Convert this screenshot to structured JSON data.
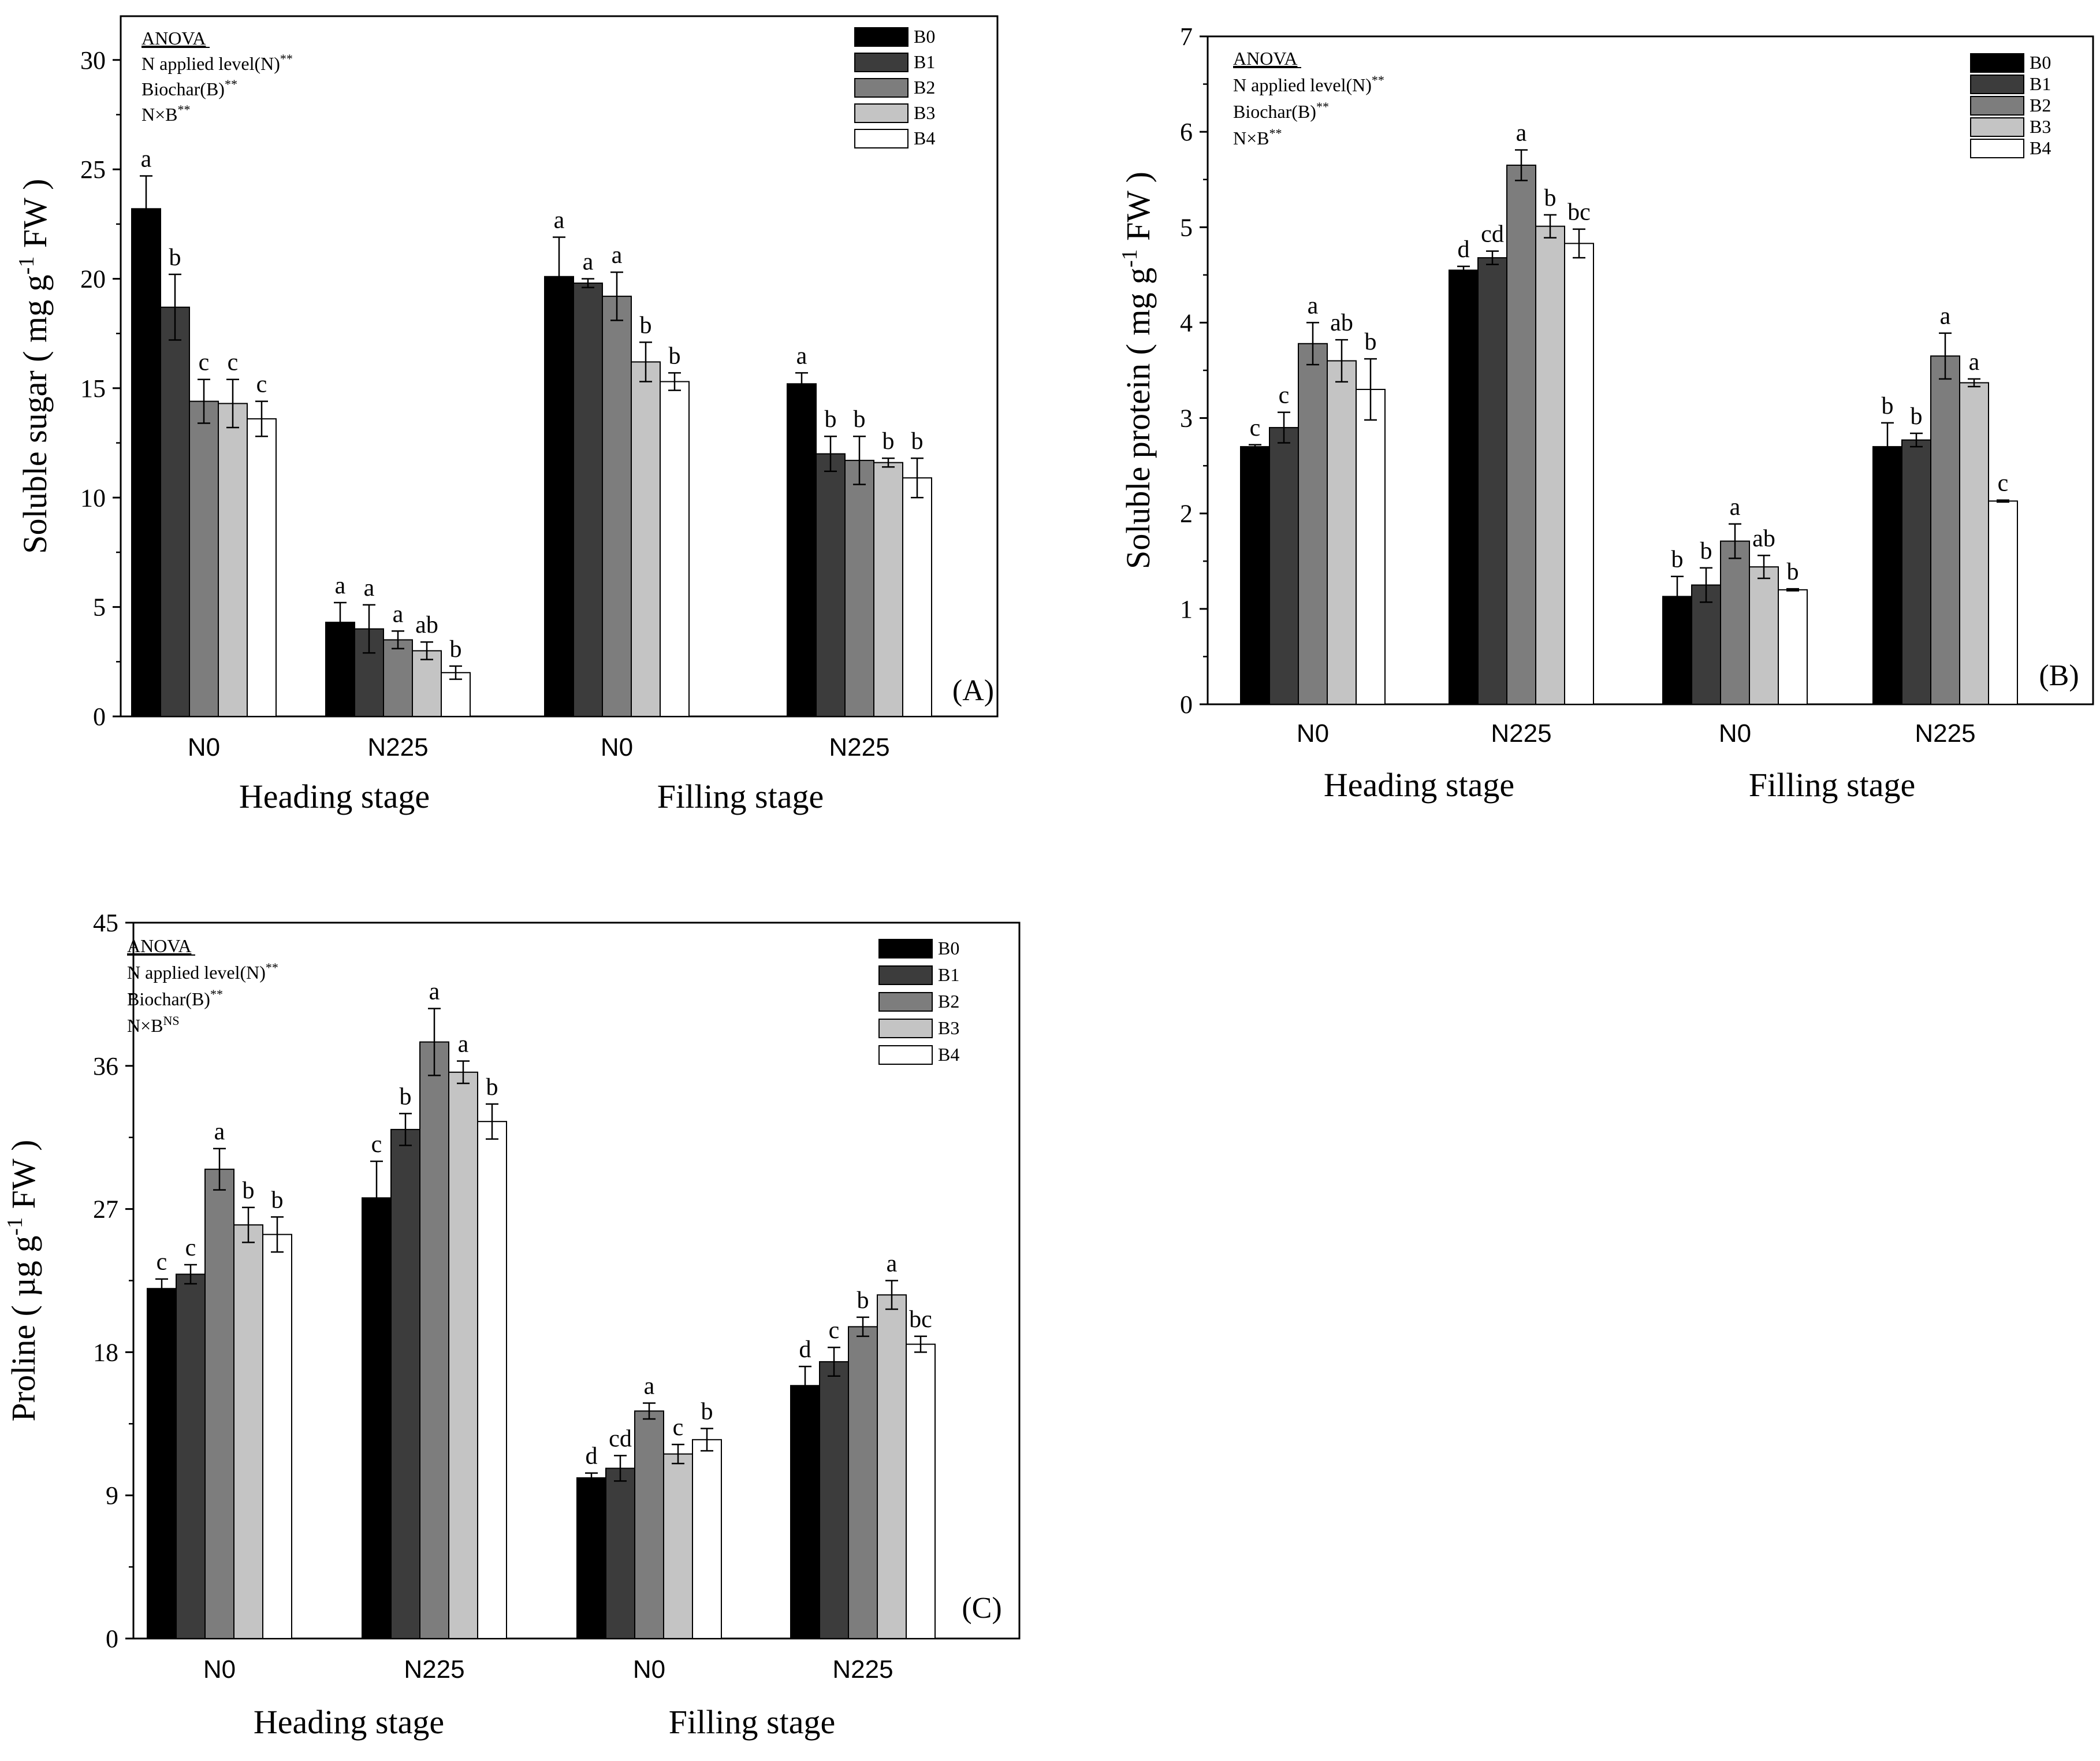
{
  "figure": {
    "legend_labels": [
      "B0",
      "B1",
      "B2",
      "B3",
      "B4"
    ],
    "bar_colors": [
      "#000000",
      "#3c3c3c",
      "#7d7d7d",
      "#c4c4c4",
      "#ffffff"
    ],
    "group_labels": [
      "N0",
      "N225",
      "N0",
      "N225"
    ],
    "stage_labels": [
      "Heading stage",
      "Filling stage"
    ],
    "anova_title": "ANOVA"
  },
  "chart_data": [
    {
      "type": "bar",
      "panel_label": "(A)",
      "ylabel": "Soluble sugar ( mg g-1 FW )",
      "ylabel_parts": {
        "pre": "Soluble sugar ( mg g",
        "sup": "-1",
        "post": " FW )"
      },
      "ylim": [
        0,
        32
      ],
      "yticks": [
        0,
        5,
        10,
        15,
        20,
        25,
        30
      ],
      "categories": [
        "N0",
        "N225",
        "N0",
        "N225"
      ],
      "stages": [
        "Heading stage",
        "Filling stage"
      ],
      "anova": [
        {
          "text": "N applied level(N)",
          "sup": "**"
        },
        {
          "text": "Biochar(B)",
          "sup": "**"
        },
        {
          "text": "N×B",
          "sup": "**"
        }
      ],
      "series": [
        {
          "name": "B0",
          "values": [
            23.2,
            4.3,
            20.1,
            15.2
          ],
          "errors": [
            1.5,
            0.9,
            1.8,
            0.5
          ],
          "letters": [
            "a",
            "a",
            "a",
            "a"
          ]
        },
        {
          "name": "B1",
          "values": [
            18.7,
            4.0,
            19.8,
            12.0
          ],
          "errors": [
            1.5,
            1.1,
            0.2,
            0.8
          ],
          "letters": [
            "b",
            "a",
            "a",
            "b"
          ]
        },
        {
          "name": "B2",
          "values": [
            14.4,
            3.5,
            19.2,
            11.7
          ],
          "errors": [
            1.0,
            0.4,
            1.1,
            1.1
          ],
          "letters": [
            "c",
            "a",
            "a",
            "b"
          ]
        },
        {
          "name": "B3",
          "values": [
            14.3,
            3.0,
            16.2,
            11.6
          ],
          "errors": [
            1.1,
            0.4,
            0.9,
            0.2
          ],
          "letters": [
            "c",
            "ab",
            "b",
            "b"
          ]
        },
        {
          "name": "B4",
          "values": [
            13.6,
            2.0,
            15.3,
            10.9
          ],
          "errors": [
            0.8,
            0.3,
            0.4,
            0.9
          ],
          "letters": [
            "c",
            "b",
            "b",
            "b"
          ]
        }
      ]
    },
    {
      "type": "bar",
      "panel_label": "(B)",
      "ylabel": "Soluble protein ( mg g-1 FW )",
      "ylabel_parts": {
        "pre": "Soluble protein ( mg g",
        "sup": "-1",
        "post": " FW )"
      },
      "ylim": [
        0,
        7
      ],
      "yticks": [
        0,
        1,
        2,
        3,
        4,
        5,
        6,
        7
      ],
      "categories": [
        "N0",
        "N225",
        "N0",
        "N225"
      ],
      "stages": [
        "Heading stage",
        "Filling stage"
      ],
      "anova": [
        {
          "text": "N applied level(N)",
          "sup": "**"
        },
        {
          "text": "Biochar(B)",
          "sup": "**"
        },
        {
          "text": "N×B",
          "sup": "**"
        }
      ],
      "series": [
        {
          "name": "B0",
          "values": [
            2.7,
            4.55,
            1.13,
            2.7
          ],
          "errors": [
            0.02,
            0.04,
            0.21,
            0.25
          ],
          "letters": [
            "c",
            "d",
            "b",
            "b"
          ]
        },
        {
          "name": "B1",
          "values": [
            2.9,
            4.68,
            1.25,
            2.77
          ],
          "errors": [
            0.16,
            0.07,
            0.18,
            0.07
          ],
          "letters": [
            "c",
            "cd",
            "b",
            "b"
          ]
        },
        {
          "name": "B2",
          "values": [
            3.78,
            5.65,
            1.71,
            3.65
          ],
          "errors": [
            0.22,
            0.16,
            0.18,
            0.24
          ],
          "letters": [
            "a",
            "a",
            "a",
            "a"
          ]
        },
        {
          "name": "B3",
          "values": [
            3.6,
            5.01,
            1.44,
            3.37
          ],
          "errors": [
            0.22,
            0.12,
            0.12,
            0.04
          ],
          "letters": [
            "ab",
            "b",
            "ab",
            "a"
          ]
        },
        {
          "name": "B4",
          "values": [
            3.3,
            4.83,
            1.2,
            2.13
          ],
          "errors": [
            0.32,
            0.15,
            0.01,
            0.01
          ],
          "letters": [
            "b",
            "bc",
            "b",
            "c"
          ]
        }
      ]
    },
    {
      "type": "bar",
      "panel_label": "(C)",
      "ylabel": "Proline ( µg g-1 FW )",
      "ylabel_parts": {
        "pre": "Proline ( µg g",
        "sup": "-1",
        "post": " FW )"
      },
      "ylim": [
        0,
        45
      ],
      "yticks": [
        0,
        9,
        18,
        27,
        36,
        45
      ],
      "categories": [
        "N0",
        "N225",
        "N0",
        "N225"
      ],
      "stages": [
        "Heading stage",
        "Filling stage"
      ],
      "anova": [
        {
          "text": "N applied level(N)",
          "sup": "**"
        },
        {
          "text": "Biochar(B)",
          "sup": "**"
        },
        {
          "text": "N×B",
          "sup": "NS"
        }
      ],
      "series": [
        {
          "name": "B0",
          "values": [
            22.0,
            27.7,
            10.1,
            15.9
          ],
          "errors": [
            0.6,
            2.3,
            0.3,
            1.2
          ],
          "letters": [
            "c",
            "c",
            "d",
            "d"
          ]
        },
        {
          "name": "B1",
          "values": [
            22.9,
            32.0,
            10.7,
            17.4
          ],
          "errors": [
            0.6,
            1.0,
            0.8,
            0.9
          ],
          "letters": [
            "c",
            "b",
            "cd",
            "c"
          ]
        },
        {
          "name": "B2",
          "values": [
            29.5,
            37.5,
            14.3,
            19.6
          ],
          "errors": [
            1.3,
            2.1,
            0.5,
            0.6
          ],
          "letters": [
            "a",
            "a",
            "a",
            "b"
          ]
        },
        {
          "name": "B3",
          "values": [
            26.0,
            35.6,
            11.6,
            21.6
          ],
          "errors": [
            1.1,
            0.7,
            0.6,
            0.9
          ],
          "letters": [
            "b",
            "a",
            "c",
            "a"
          ]
        },
        {
          "name": "B4",
          "values": [
            25.4,
            32.5,
            12.5,
            18.5
          ],
          "errors": [
            1.1,
            1.1,
            0.7,
            0.5
          ],
          "letters": [
            "b",
            "b",
            "b",
            "bc"
          ]
        }
      ]
    }
  ]
}
